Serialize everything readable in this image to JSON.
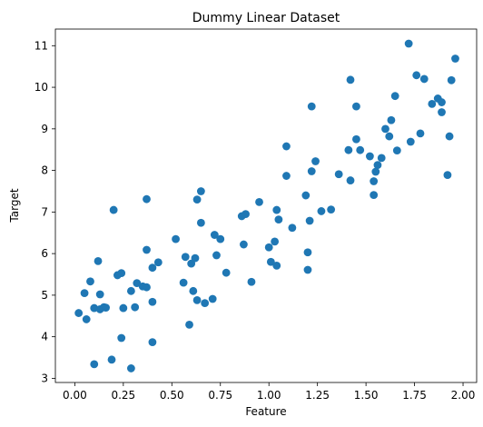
{
  "chart_data": {
    "type": "scatter",
    "title": "Dummy Linear Dataset",
    "xlabel": "Feature",
    "ylabel": "Target",
    "xlim": [
      -0.1,
      2.07
    ],
    "ylim": [
      2.9,
      11.4
    ],
    "xticks": [
      0.0,
      0.25,
      0.5,
      0.75,
      1.0,
      1.25,
      1.5,
      1.75,
      2.0
    ],
    "xtick_labels": [
      "0.00",
      "0.25",
      "0.50",
      "0.75",
      "1.00",
      "1.25",
      "1.50",
      "1.75",
      "2.00"
    ],
    "yticks": [
      3,
      4,
      5,
      6,
      7,
      8,
      9,
      10,
      11
    ],
    "ytick_labels": [
      "3",
      "4",
      "5",
      "6",
      "7",
      "8",
      "9",
      "10",
      "11"
    ],
    "grid": false,
    "color": "#1f77b4",
    "points": [
      [
        0.02,
        4.57
      ],
      [
        0.05,
        5.05
      ],
      [
        0.06,
        4.42
      ],
      [
        0.08,
        5.33
      ],
      [
        0.1,
        3.34
      ],
      [
        0.1,
        4.69
      ],
      [
        0.12,
        5.82
      ],
      [
        0.13,
        5.02
      ],
      [
        0.13,
        4.66
      ],
      [
        0.15,
        4.71
      ],
      [
        0.16,
        4.7
      ],
      [
        0.19,
        3.45
      ],
      [
        0.2,
        7.05
      ],
      [
        0.22,
        5.48
      ],
      [
        0.24,
        5.53
      ],
      [
        0.24,
        3.97
      ],
      [
        0.25,
        4.69
      ],
      [
        0.29,
        5.1
      ],
      [
        0.29,
        3.24
      ],
      [
        0.31,
        4.71
      ],
      [
        0.32,
        5.29
      ],
      [
        0.35,
        5.21
      ],
      [
        0.37,
        5.19
      ],
      [
        0.37,
        6.09
      ],
      [
        0.37,
        7.31
      ],
      [
        0.4,
        5.66
      ],
      [
        0.4,
        3.87
      ],
      [
        0.4,
        4.84
      ],
      [
        0.43,
        5.79
      ],
      [
        0.52,
        6.35
      ],
      [
        0.56,
        5.3
      ],
      [
        0.57,
        5.92
      ],
      [
        0.59,
        4.29
      ],
      [
        0.6,
        5.76
      ],
      [
        0.61,
        5.1
      ],
      [
        0.62,
        5.89
      ],
      [
        0.63,
        7.3
      ],
      [
        0.63,
        4.88
      ],
      [
        0.65,
        7.5
      ],
      [
        0.65,
        6.74
      ],
      [
        0.67,
        4.81
      ],
      [
        0.71,
        4.91
      ],
      [
        0.72,
        6.45
      ],
      [
        0.73,
        5.96
      ],
      [
        0.75,
        6.35
      ],
      [
        0.78,
        5.54
      ],
      [
        0.86,
        6.9
      ],
      [
        0.87,
        6.22
      ],
      [
        0.88,
        6.95
      ],
      [
        0.91,
        5.32
      ],
      [
        0.95,
        7.24
      ],
      [
        1.0,
        6.15
      ],
      [
        1.01,
        5.8
      ],
      [
        1.03,
        6.29
      ],
      [
        1.04,
        5.71
      ],
      [
        1.04,
        7.05
      ],
      [
        1.05,
        6.82
      ],
      [
        1.09,
        8.58
      ],
      [
        1.09,
        7.87
      ],
      [
        1.12,
        6.62
      ],
      [
        1.19,
        7.4
      ],
      [
        1.2,
        6.03
      ],
      [
        1.2,
        5.61
      ],
      [
        1.21,
        6.79
      ],
      [
        1.22,
        9.54
      ],
      [
        1.22,
        7.98
      ],
      [
        1.24,
        8.22
      ],
      [
        1.27,
        7.02
      ],
      [
        1.32,
        7.06
      ],
      [
        1.36,
        7.91
      ],
      [
        1.41,
        8.49
      ],
      [
        1.42,
        10.18
      ],
      [
        1.42,
        7.76
      ],
      [
        1.45,
        8.75
      ],
      [
        1.45,
        9.54
      ],
      [
        1.47,
        8.49
      ],
      [
        1.52,
        8.34
      ],
      [
        1.54,
        7.41
      ],
      [
        1.54,
        7.74
      ],
      [
        1.55,
        7.97
      ],
      [
        1.56,
        8.13
      ],
      [
        1.58,
        8.3
      ],
      [
        1.6,
        9.0
      ],
      [
        1.62,
        8.82
      ],
      [
        1.63,
        9.21
      ],
      [
        1.65,
        9.79
      ],
      [
        1.66,
        8.48
      ],
      [
        1.72,
        11.05
      ],
      [
        1.73,
        8.69
      ],
      [
        1.76,
        10.29
      ],
      [
        1.78,
        8.89
      ],
      [
        1.8,
        10.2
      ],
      [
        1.84,
        9.6
      ],
      [
        1.87,
        9.73
      ],
      [
        1.89,
        9.64
      ],
      [
        1.89,
        9.4
      ],
      [
        1.92,
        7.89
      ],
      [
        1.93,
        8.82
      ],
      [
        1.94,
        10.17
      ],
      [
        1.96,
        10.69
      ]
    ]
  }
}
